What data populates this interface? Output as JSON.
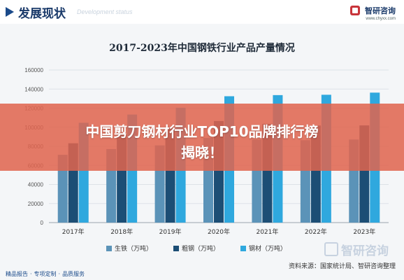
{
  "header": {
    "title": "发展现状",
    "subtitle": "Development status",
    "brand_name": "智研咨询",
    "brand_url": "www.chyxx.com"
  },
  "banner": {
    "line1": "中国剪刀钢材行业TOP10品牌排行榜",
    "line2": "揭晓！"
  },
  "footer": {
    "links": [
      "精品报告",
      "专项定制",
      "品质服务"
    ],
    "source": "资料来源：国家统计局、智研咨询整理",
    "watermark": "智研咨询"
  },
  "colors": {
    "series": [
      "#5b93b8",
      "#1c4e75",
      "#2fa8de"
    ],
    "banner": "#e0644e"
  },
  "chart_data": {
    "type": "bar",
    "title": "2017-2023年中国钢铁行业产品产量情况",
    "categories": [
      "2017年",
      "2018年",
      "2019年",
      "2020年",
      "2021年",
      "2022年",
      "2023年"
    ],
    "series": [
      {
        "name": "生铁（万吨）",
        "values": [
          71076,
          77105,
          80937,
          88752,
          86857,
          86383,
          87101
        ]
      },
      {
        "name": "粗钢（万吨）",
        "values": [
          83173,
          92904,
          99634,
          106477,
          103524,
          101796,
          101908
        ]
      },
      {
        "name": "钢材（万吨）",
        "values": [
          104642,
          113287,
          120457,
          132489,
          133667,
          134034,
          136268
        ]
      }
    ],
    "ylim": [
      0,
      160000
    ],
    "yticks": [
      0,
      20000,
      40000,
      60000,
      80000,
      100000,
      120000,
      140000,
      160000
    ],
    "grid": true,
    "legend": "bottom"
  }
}
